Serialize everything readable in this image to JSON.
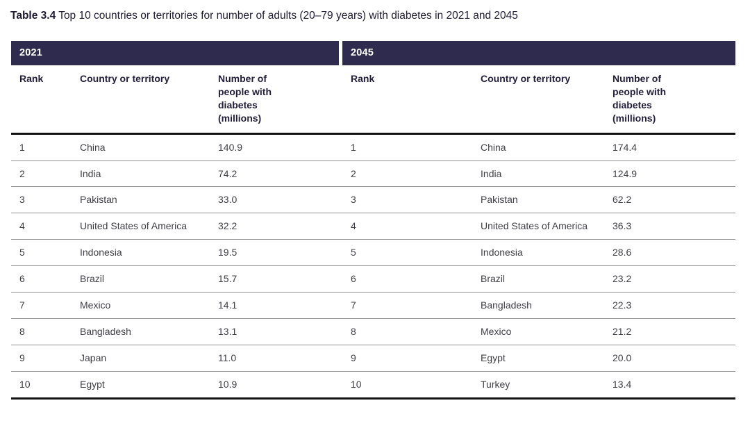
{
  "page": {
    "title_label": "Table 3.4",
    "title_text": "Top 10 countries or territories for number of adults (20–79 years) with diabetes in 2021 and 2045"
  },
  "table": {
    "column_headers": {
      "rank": "Rank",
      "country": "Country or territory",
      "number": "Number of people with diabetes (millions)"
    },
    "sections": [
      {
        "year": "2021",
        "rows": [
          {
            "rank": "1",
            "country": "China",
            "value": "140.9"
          },
          {
            "rank": "2",
            "country": "India",
            "value": "74.2"
          },
          {
            "rank": "3",
            "country": "Pakistan",
            "value": "33.0"
          },
          {
            "rank": "4",
            "country": "United States of America",
            "value": "32.2"
          },
          {
            "rank": "5",
            "country": "Indonesia",
            "value": "19.5"
          },
          {
            "rank": "6",
            "country": "Brazil",
            "value": "15.7"
          },
          {
            "rank": "7",
            "country": "Mexico",
            "value": "14.1"
          },
          {
            "rank": "8",
            "country": "Bangladesh",
            "value": "13.1"
          },
          {
            "rank": "9",
            "country": "Japan",
            "value": "11.0"
          },
          {
            "rank": "10",
            "country": "Egypt",
            "value": "10.9"
          }
        ]
      },
      {
        "year": "2045",
        "rows": [
          {
            "rank": "1",
            "country": "China",
            "value": "174.4"
          },
          {
            "rank": "2",
            "country": "India",
            "value": "124.9"
          },
          {
            "rank": "3",
            "country": "Pakistan",
            "value": "62.2"
          },
          {
            "rank": "4",
            "country": "United States of America",
            "value": "36.3"
          },
          {
            "rank": "5",
            "country": "Indonesia",
            "value": "28.6"
          },
          {
            "rank": "6",
            "country": "Brazil",
            "value": "23.2"
          },
          {
            "rank": "7",
            "country": "Bangladesh",
            "value": "22.3"
          },
          {
            "rank": "8",
            "country": "Mexico",
            "value": "21.2"
          },
          {
            "rank": "9",
            "country": "Egypt",
            "value": "20.0"
          },
          {
            "rank": "10",
            "country": "Turkey",
            "value": "13.4"
          }
        ]
      }
    ]
  },
  "colors": {
    "band_bg": "#2f2b4e",
    "band_text": "#ffffff",
    "header_text": "#211d3a",
    "body_text": "#3f3f46",
    "thin_rule": "#8f8f8f",
    "thick_rule": "#121212"
  }
}
